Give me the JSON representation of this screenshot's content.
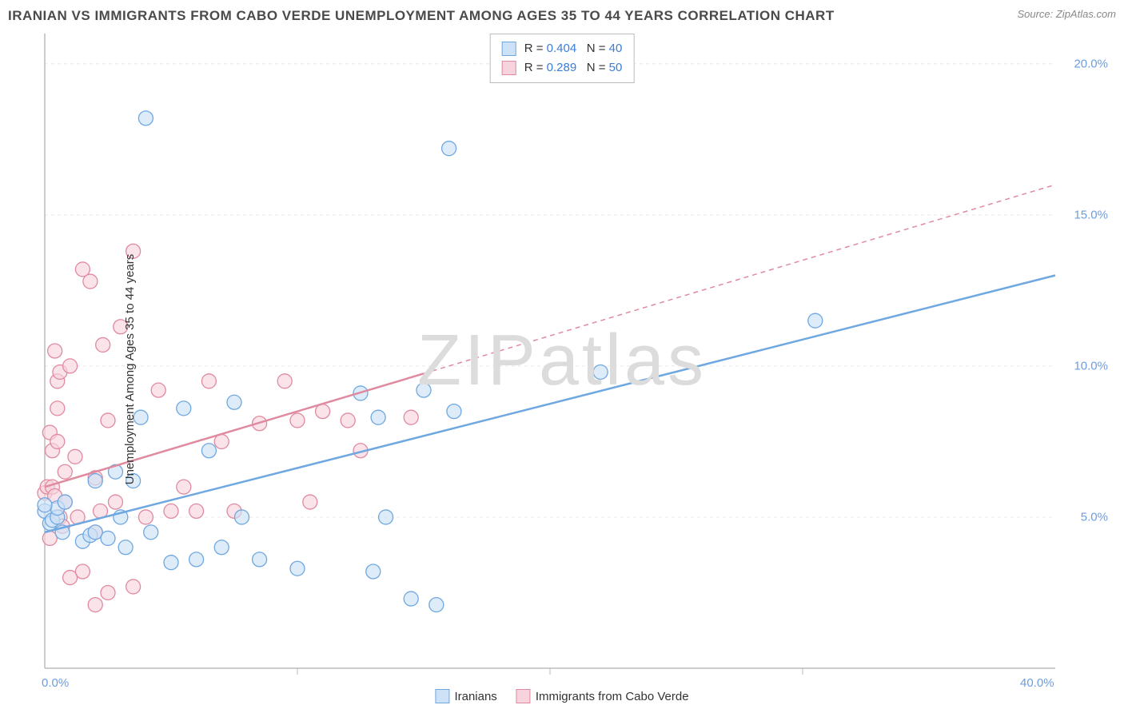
{
  "title": "IRANIAN VS IMMIGRANTS FROM CABO VERDE UNEMPLOYMENT AMONG AGES 35 TO 44 YEARS CORRELATION CHART",
  "source": "Source: ZipAtlas.com",
  "watermark": "ZIPatlas",
  "chart": {
    "type": "scatter",
    "ylabel": "Unemployment Among Ages 35 to 44 years",
    "xlim": [
      0,
      40
    ],
    "ylim": [
      0,
      21
    ],
    "xtick_labels": [
      "0.0%",
      "40.0%"
    ],
    "xtick_positions": [
      0,
      40
    ],
    "xtick_minor": [
      10,
      20,
      30
    ],
    "ytick_labels": [
      "5.0%",
      "10.0%",
      "15.0%",
      "20.0%"
    ],
    "ytick_positions": [
      5,
      10,
      15,
      20
    ],
    "background_color": "#ffffff",
    "grid_color": "#e8e8e8",
    "axis_color": "#bbbbbb",
    "tick_label_color": "#6a9ee0",
    "series": [
      {
        "name": "Iranians",
        "color_fill": "#cde2f7",
        "color_stroke": "#6fa8e0",
        "marker_radius": 9,
        "marker_opacity": 0.65,
        "R": "0.404",
        "N": "40",
        "regression": {
          "x1": 0,
          "y1": 4.5,
          "x2": 40,
          "y2": 13.0,
          "dash_from": 40
        },
        "points": [
          [
            0.0,
            5.2
          ],
          [
            0.2,
            4.8
          ],
          [
            0.3,
            4.9
          ],
          [
            0.5,
            5.0
          ],
          [
            0.5,
            5.3
          ],
          [
            0.7,
            4.5
          ],
          [
            0.8,
            5.5
          ],
          [
            1.5,
            4.2
          ],
          [
            1.8,
            4.4
          ],
          [
            2.0,
            4.5
          ],
          [
            2.0,
            6.2
          ],
          [
            2.5,
            4.3
          ],
          [
            2.8,
            6.5
          ],
          [
            3.0,
            5.0
          ],
          [
            3.2,
            4.0
          ],
          [
            3.5,
            6.2
          ],
          [
            3.8,
            8.3
          ],
          [
            4.0,
            18.2
          ],
          [
            4.2,
            4.5
          ],
          [
            5.0,
            3.5
          ],
          [
            5.5,
            8.6
          ],
          [
            6.0,
            3.6
          ],
          [
            6.5,
            7.2
          ],
          [
            7.0,
            4.0
          ],
          [
            7.5,
            8.8
          ],
          [
            7.8,
            5.0
          ],
          [
            8.5,
            3.6
          ],
          [
            10.0,
            3.3
          ],
          [
            12.5,
            9.1
          ],
          [
            13.0,
            3.2
          ],
          [
            13.2,
            8.3
          ],
          [
            13.5,
            5.0
          ],
          [
            14.5,
            2.3
          ],
          [
            15.0,
            9.2
          ],
          [
            15.5,
            2.1
          ],
          [
            16.0,
            17.2
          ],
          [
            16.2,
            8.5
          ],
          [
            22.0,
            9.8
          ],
          [
            30.5,
            11.5
          ],
          [
            0.0,
            5.4
          ]
        ]
      },
      {
        "name": "Immigrants from Cabo Verde",
        "color_fill": "#f7d4dd",
        "color_stroke": "#e08aa0",
        "marker_radius": 9,
        "marker_opacity": 0.65,
        "R": "0.289",
        "N": "50",
        "regression": {
          "x1": 0,
          "y1": 6.0,
          "x2": 40,
          "y2": 16.0,
          "dash_from": 15
        },
        "points": [
          [
            0.0,
            5.8
          ],
          [
            0.1,
            6.0
          ],
          [
            0.2,
            7.8
          ],
          [
            0.2,
            4.3
          ],
          [
            0.3,
            7.2
          ],
          [
            0.3,
            6.0
          ],
          [
            0.4,
            10.5
          ],
          [
            0.4,
            5.7
          ],
          [
            0.5,
            7.5
          ],
          [
            0.5,
            8.6
          ],
          [
            0.5,
            9.5
          ],
          [
            0.6,
            5.0
          ],
          [
            0.6,
            9.8
          ],
          [
            0.7,
            4.7
          ],
          [
            0.8,
            5.5
          ],
          [
            0.8,
            6.5
          ],
          [
            1.0,
            10.0
          ],
          [
            1.0,
            3.0
          ],
          [
            1.2,
            7.0
          ],
          [
            1.3,
            5.0
          ],
          [
            1.5,
            3.2
          ],
          [
            1.5,
            13.2
          ],
          [
            1.8,
            12.8
          ],
          [
            2.0,
            4.5
          ],
          [
            2.0,
            6.3
          ],
          [
            2.2,
            5.2
          ],
          [
            2.3,
            10.7
          ],
          [
            2.5,
            2.5
          ],
          [
            2.5,
            8.2
          ],
          [
            2.8,
            5.5
          ],
          [
            3.0,
            11.3
          ],
          [
            3.5,
            2.7
          ],
          [
            3.5,
            13.8
          ],
          [
            4.0,
            5.0
          ],
          [
            4.5,
            9.2
          ],
          [
            5.0,
            5.2
          ],
          [
            5.5,
            6.0
          ],
          [
            6.0,
            5.2
          ],
          [
            6.5,
            9.5
          ],
          [
            7.0,
            7.5
          ],
          [
            7.5,
            5.2
          ],
          [
            8.5,
            8.1
          ],
          [
            9.5,
            9.5
          ],
          [
            10.0,
            8.2
          ],
          [
            10.5,
            5.5
          ],
          [
            11.0,
            8.5
          ],
          [
            12.0,
            8.2
          ],
          [
            12.5,
            7.2
          ],
          [
            14.5,
            8.3
          ],
          [
            2.0,
            2.1
          ]
        ]
      }
    ],
    "legend_bottom": [
      {
        "label": "Iranians",
        "fill": "#cde2f7",
        "stroke": "#6fa8e0"
      },
      {
        "label": "Immigrants from Cabo Verde",
        "fill": "#f7d4dd",
        "stroke": "#e08aa0"
      }
    ],
    "legend_inset": [
      {
        "fill": "#cde2f7",
        "stroke": "#6fa8e0",
        "R": "0.404",
        "N": "40"
      },
      {
        "fill": "#f7d4dd",
        "stroke": "#e08aa0",
        "R": "0.289",
        "N": "50"
      }
    ]
  }
}
